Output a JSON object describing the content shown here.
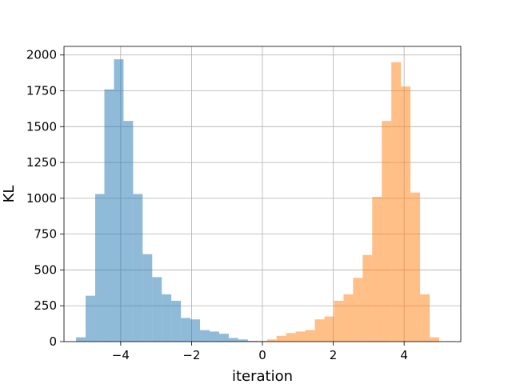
{
  "chart_data": {
    "type": "bar",
    "title": "",
    "xlabel": "iteration",
    "ylabel": "KL",
    "xlim": [
      -5.6,
      5.6
    ],
    "ylim": [
      0,
      2060
    ],
    "x_ticks": [
      -4,
      -2,
      0,
      2,
      4
    ],
    "x_tick_labels": [
      "−4",
      "−2",
      "0",
      "2",
      "4"
    ],
    "y_ticks": [
      0,
      250,
      500,
      750,
      1000,
      1250,
      1500,
      1750,
      2000
    ],
    "y_tick_labels": [
      "0",
      "250",
      "500",
      "750",
      "1000",
      "1250",
      "1500",
      "1750",
      "2000"
    ],
    "grid": true,
    "legend": "none",
    "series": [
      {
        "color": "#1f77b4",
        "opacity": 0.5,
        "bins": [
          [
            -5.26,
            -4.99,
            30
          ],
          [
            -4.99,
            -4.72,
            320
          ],
          [
            -4.72,
            -4.46,
            1030
          ],
          [
            -4.46,
            -4.19,
            1760
          ],
          [
            -4.19,
            -3.92,
            1970
          ],
          [
            -3.92,
            -3.65,
            1540
          ],
          [
            -3.65,
            -3.38,
            1030
          ],
          [
            -3.38,
            -3.11,
            610
          ],
          [
            -3.11,
            -2.84,
            450
          ],
          [
            -2.84,
            -2.57,
            330
          ],
          [
            -2.57,
            -2.3,
            285
          ],
          [
            -2.3,
            -2.03,
            165
          ],
          [
            -2.03,
            -1.76,
            155
          ],
          [
            -1.76,
            -1.49,
            80
          ],
          [
            -1.49,
            -1.22,
            70
          ],
          [
            -1.22,
            -0.95,
            55
          ],
          [
            -0.95,
            -0.68,
            25
          ],
          [
            -0.68,
            -0.41,
            15
          ],
          [
            -0.41,
            -0.14,
            5
          ]
        ]
      },
      {
        "color": "#ff7f0e",
        "opacity": 0.5,
        "bins": [
          [
            -0.14,
            0.13,
            5
          ],
          [
            0.13,
            0.4,
            15
          ],
          [
            0.4,
            0.67,
            40
          ],
          [
            0.67,
            0.94,
            60
          ],
          [
            0.94,
            1.21,
            70
          ],
          [
            1.21,
            1.48,
            80
          ],
          [
            1.48,
            1.75,
            155
          ],
          [
            1.75,
            2.02,
            175
          ],
          [
            2.02,
            2.29,
            285
          ],
          [
            2.29,
            2.56,
            330
          ],
          [
            2.56,
            2.83,
            445
          ],
          [
            2.83,
            3.1,
            605
          ],
          [
            3.1,
            3.37,
            1010
          ],
          [
            3.37,
            3.64,
            1540
          ],
          [
            3.64,
            3.91,
            1950
          ],
          [
            3.91,
            4.18,
            1780
          ],
          [
            4.18,
            4.45,
            1040
          ],
          [
            4.45,
            4.72,
            330
          ],
          [
            4.72,
            4.99,
            30
          ]
        ]
      }
    ]
  }
}
